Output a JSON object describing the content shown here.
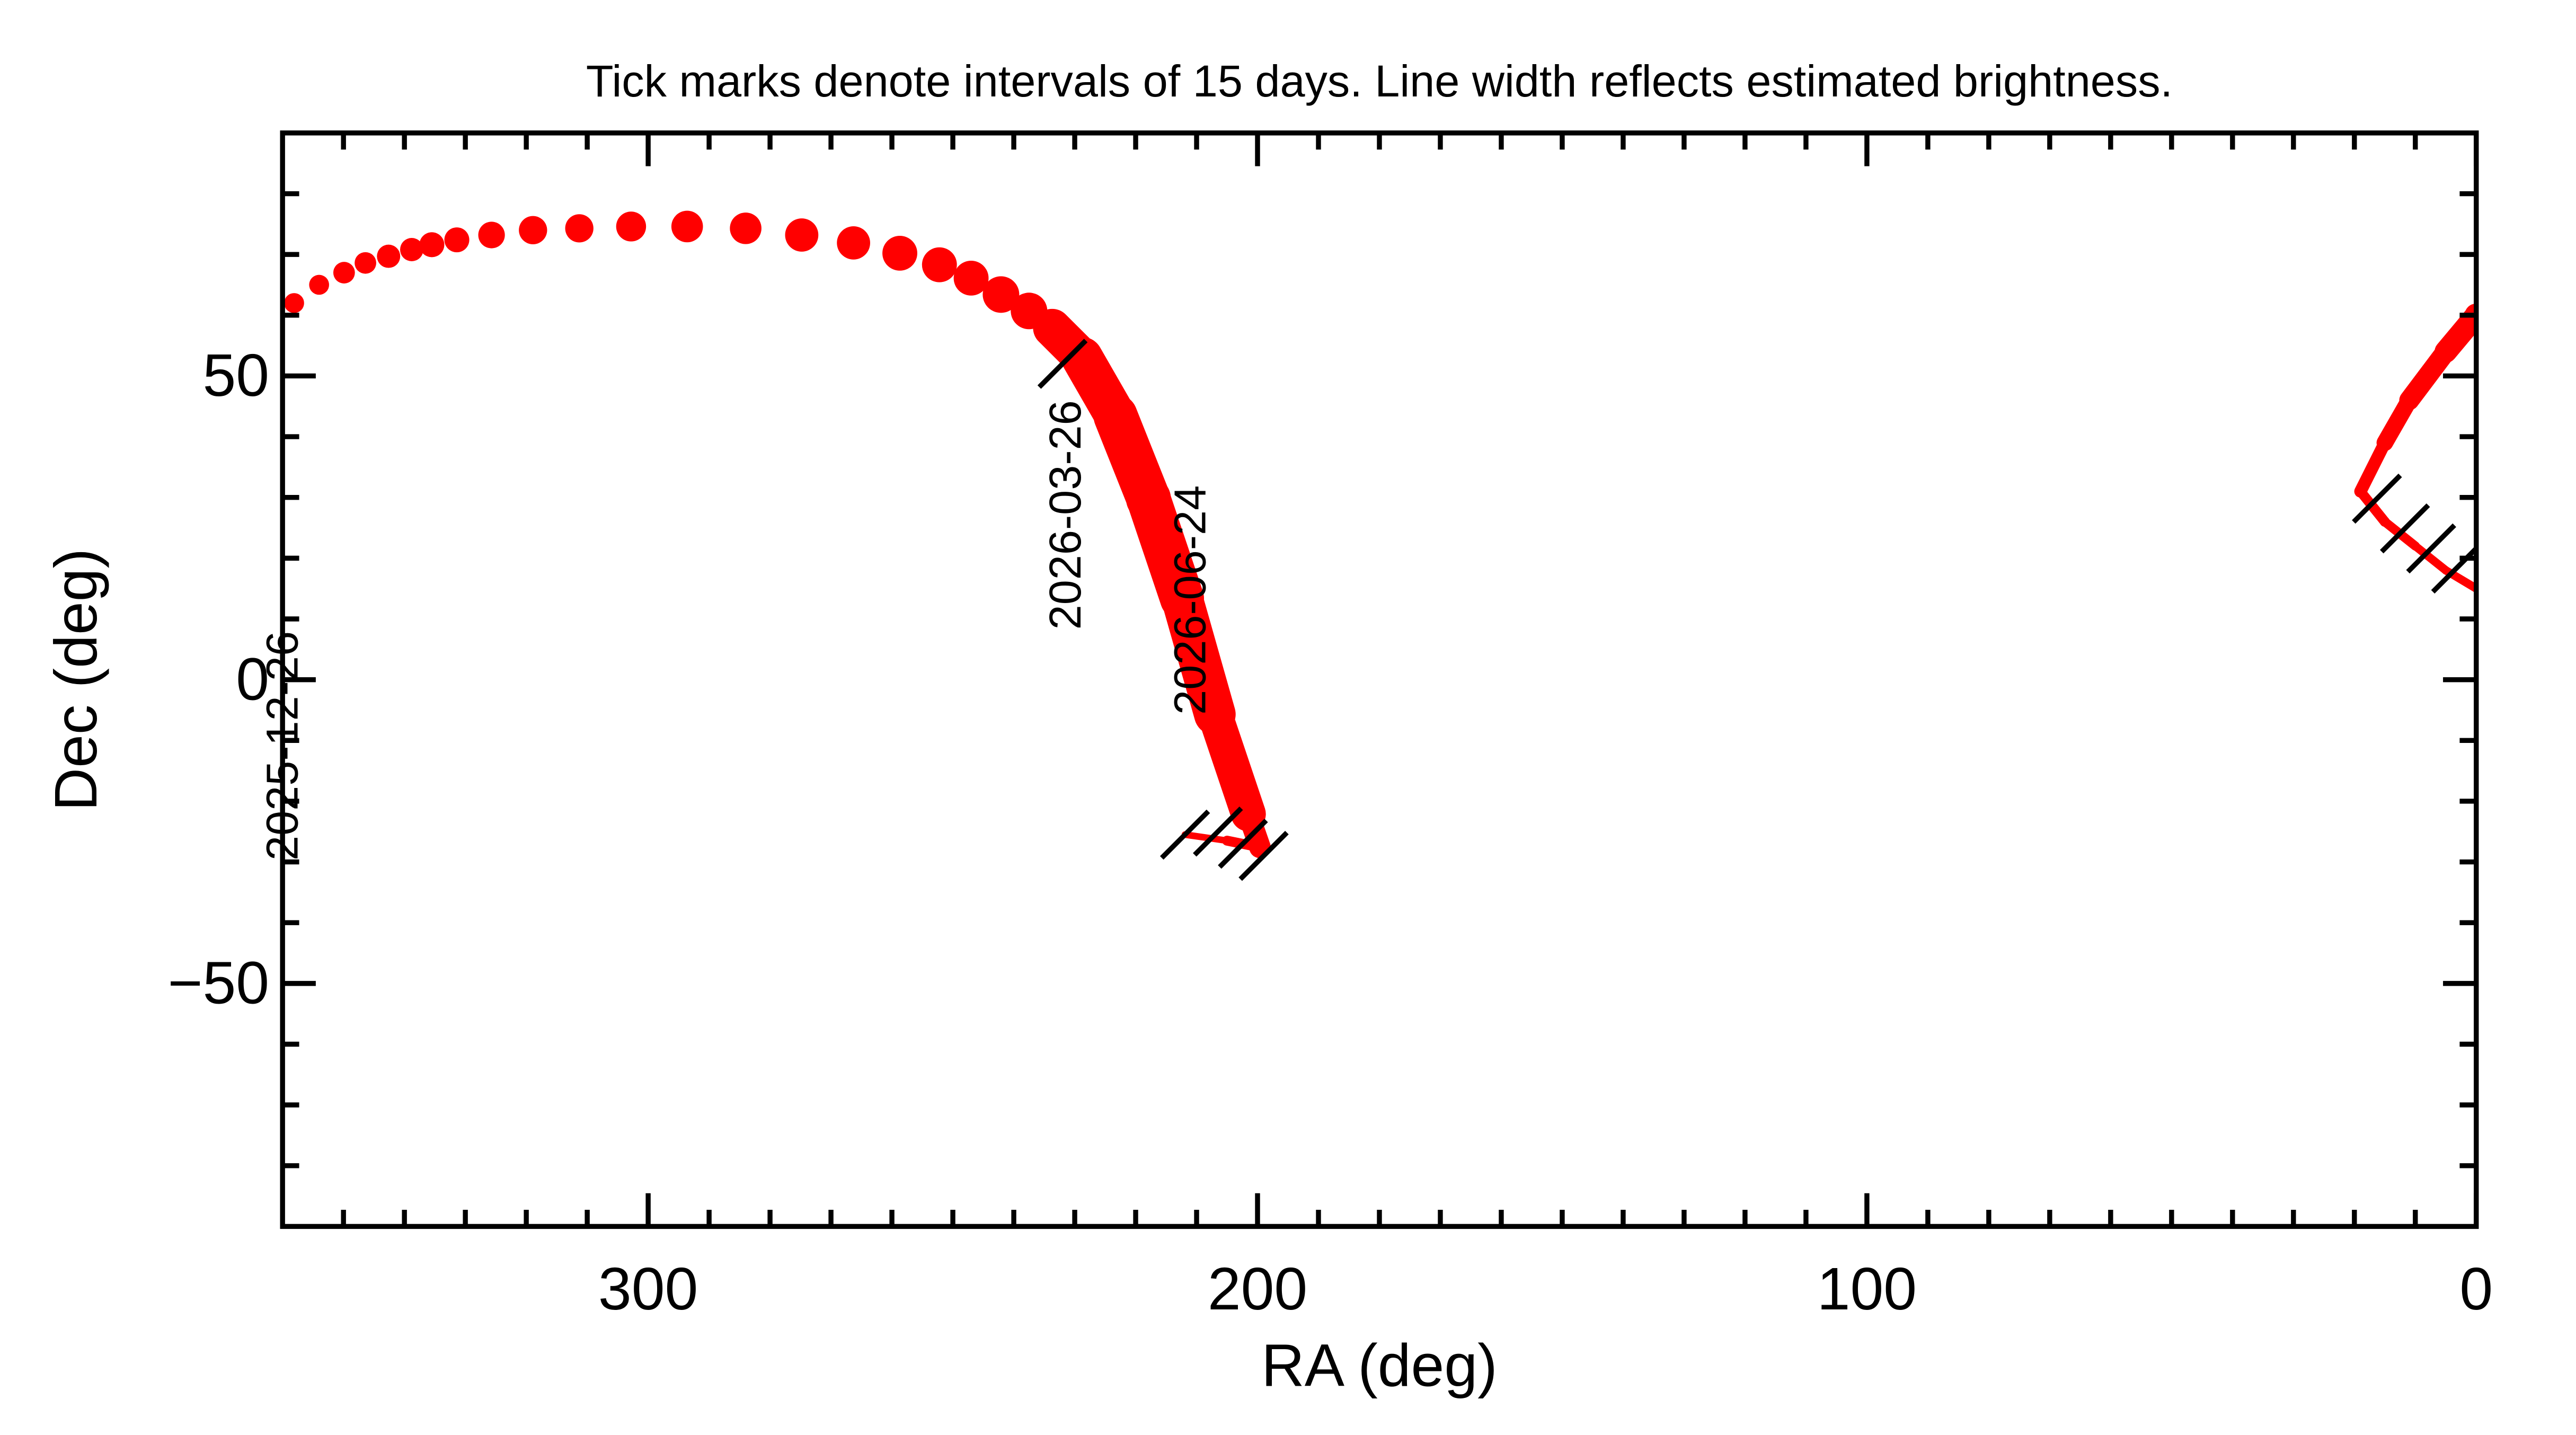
{
  "chart_data": {
    "type": "line",
    "title": "Tick marks denote intervals of 15 days.  Line width reflects estimated brightness.",
    "x_label": "RA (deg)",
    "y_label": "Dec (deg)",
    "xlim": [
      360,
      0
    ],
    "ylim": [
      -90,
      90
    ],
    "xticks": [
      300,
      200,
      100,
      0
    ],
    "yticks": [
      {
        "value": -50,
        "label": "−50"
      },
      0,
      50
    ],
    "xminorticks": [
      350,
      340,
      330,
      320,
      310,
      290,
      280,
      270,
      260,
      250,
      240,
      230,
      220,
      210,
      190,
      180,
      170,
      160,
      150,
      140,
      130,
      120,
      110,
      90,
      80,
      70,
      60,
      50,
      40,
      30,
      20,
      10
    ],
    "yminorticks": [
      -80,
      -70,
      -60,
      -40,
      -30,
      -20,
      -10,
      10,
      20,
      30,
      40,
      60,
      70,
      80
    ],
    "series": [
      {
        "color": "#ff0000",
        "mode": "line",
        "x": [
          0,
          5,
          10,
          15,
          19,
          15,
          11,
          5,
          0
        ],
        "values": [
          15,
          18,
          22,
          26,
          31,
          39,
          46,
          54,
          60
        ],
        "sizes": [
          5,
          5,
          5,
          6,
          6,
          9,
          11,
          13,
          14
        ]
      },
      {
        "color": "#ff0000",
        "mode": "markers",
        "x": [
          358.1,
          354.0,
          349.9,
          346.4,
          342.6,
          338.8,
          335.5,
          331.4,
          325.7,
          318.9,
          311.3,
          302.8,
          293.6,
          284.0,
          274.8,
          266.3,
          258.7,
          252.2,
          247.0,
          242.1,
          237.5,
          233.7
        ],
        "values": [
          62.0,
          65.0,
          67.0,
          68.6,
          69.7,
          70.8,
          71.6,
          72.4,
          73.2,
          74.0,
          74.3,
          74.6,
          74.6,
          74.3,
          73.2,
          71.9,
          70.2,
          68.3,
          66.1,
          63.4,
          60.7,
          57.9
        ],
        "sizes": [
          12,
          12,
          13,
          13,
          14,
          14,
          15,
          15,
          16,
          17,
          17,
          18,
          19,
          19,
          20,
          20,
          21,
          21,
          21,
          22,
          22,
          22
        ]
      },
      {
        "color": "#ff0000",
        "mode": "line",
        "x": [
          233.7,
          228.8,
          223.3,
          217.9,
          212.4,
          207.0,
          201.5,
          199.6,
          205.0,
          211.9
        ],
        "values": [
          57.9,
          53.0,
          43.4,
          29.8,
          13.4,
          -5.7,
          -22.1,
          -27.6,
          -26.5,
          -25.5
        ],
        "sizes": [
          22,
          24,
          26,
          27,
          26,
          24,
          18,
          8,
          4,
          4
        ]
      }
    ],
    "track_ticks": {
      "x": [
        232.0,
        16.3,
        11.7,
        7.4,
        3.3,
        211.9,
        206.5,
        202.4,
        199.0
      ],
      "values": [
        52,
        29.8,
        24.9,
        21.6,
        18.3,
        -25.5,
        -25.0,
        -27.0,
        -29.0
      ]
    },
    "annotations": [
      {
        "text": "2025-12-26",
        "x": 360,
        "y": 8
      },
      {
        "text": "2026-03-26",
        "x": 231.5,
        "y": 46
      },
      {
        "text": "2026-06-24",
        "x": 211,
        "y": 32
      }
    ]
  }
}
